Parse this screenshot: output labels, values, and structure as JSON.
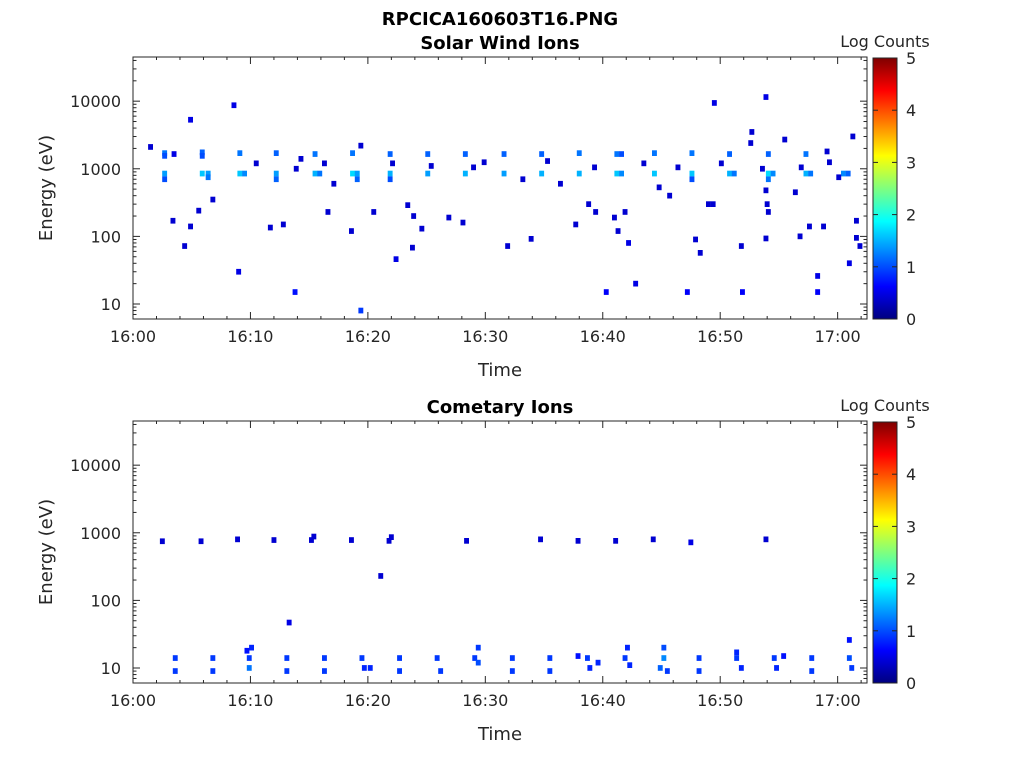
{
  "figure": {
    "title": "RPCICA160603T16.PNG"
  },
  "colors": {
    "axis": "#262626",
    "colormap": [
      "#00007f",
      "#0000ff",
      "#007fff",
      "#00ffff",
      "#7fff7f",
      "#ffff00",
      "#ff7f00",
      "#ff0000",
      "#7f0000"
    ]
  },
  "chart_data": [
    {
      "type": "heatmap",
      "title": "Solar Wind Ions",
      "xlabel": "Time",
      "ylabel": "Energy (eV)",
      "x_unit": "minutes after 16:00",
      "xlim": [
        0,
        62.5
      ],
      "ylim": [
        6,
        45000
      ],
      "yscale": "log",
      "xticks": [
        0,
        10,
        20,
        30,
        40,
        50,
        60
      ],
      "xtick_labels": [
        "16:00",
        "16:10",
        "16:20",
        "16:30",
        "16:40",
        "16:50",
        "17:00"
      ],
      "yticks": [
        10,
        100,
        1000,
        10000
      ],
      "ytick_labels": [
        "10",
        "100",
        "1000",
        "10000"
      ],
      "colorbar": {
        "label": "Log Counts",
        "range": [
          0,
          5
        ],
        "ticks": [
          "0",
          "1",
          "2",
          "3",
          "4",
          "5"
        ]
      },
      "cells": [
        [
          2.7,
          1700,
          1.2
        ],
        [
          2.7,
          1550,
          1.0
        ],
        [
          2.7,
          850,
          1.4
        ],
        [
          2.7,
          700,
          1.0
        ],
        [
          3.5,
          1650,
          0.5
        ],
        [
          5.9,
          1750,
          1.1
        ],
        [
          5.9,
          1550,
          1.0
        ],
        [
          5.9,
          850,
          1.6
        ],
        [
          6.4,
          850,
          1.4
        ],
        [
          6.4,
          750,
          1.2
        ],
        [
          9.1,
          1700,
          1.2
        ],
        [
          9.1,
          850,
          1.6
        ],
        [
          9.5,
          850,
          1.3
        ],
        [
          12.2,
          1700,
          1.1
        ],
        [
          12.2,
          850,
          1.4
        ],
        [
          12.2,
          700,
          1.1
        ],
        [
          15.5,
          1650,
          1.2
        ],
        [
          15.5,
          850,
          1.5
        ],
        [
          15.9,
          850,
          1.2
        ],
        [
          18.7,
          1700,
          1.2
        ],
        [
          18.7,
          850,
          1.7
        ],
        [
          19.1,
          850,
          1.4
        ],
        [
          19.1,
          700,
          1.1
        ],
        [
          21.9,
          1650,
          1.1
        ],
        [
          21.9,
          850,
          1.5
        ],
        [
          21.9,
          700,
          1.0
        ],
        [
          25.1,
          1650,
          1.1
        ],
        [
          25.1,
          850,
          1.4
        ],
        [
          28.3,
          1650,
          1.1
        ],
        [
          28.3,
          850,
          1.5
        ],
        [
          31.6,
          1650,
          1.1
        ],
        [
          31.6,
          850,
          1.4
        ],
        [
          34.8,
          1650,
          1.1
        ],
        [
          34.8,
          850,
          1.5
        ],
        [
          38.0,
          1700,
          1.2
        ],
        [
          38.0,
          850,
          1.5
        ],
        [
          41.2,
          1650,
          1.2
        ],
        [
          41.2,
          850,
          1.6
        ],
        [
          41.6,
          850,
          1.3
        ],
        [
          41.6,
          1650,
          1.0
        ],
        [
          44.4,
          1700,
          1.2
        ],
        [
          44.4,
          850,
          1.6
        ],
        [
          47.6,
          1700,
          1.2
        ],
        [
          47.6,
          850,
          1.6
        ],
        [
          47.6,
          700,
          1.0
        ],
        [
          50.8,
          1650,
          1.1
        ],
        [
          50.8,
          850,
          1.5
        ],
        [
          51.2,
          850,
          1.2
        ],
        [
          54.1,
          1650,
          1.1
        ],
        [
          54.1,
          850,
          1.7
        ],
        [
          54.1,
          700,
          1.2
        ],
        [
          54.5,
          850,
          1.3
        ],
        [
          57.3,
          1650,
          1.2
        ],
        [
          57.3,
          850,
          1.5
        ],
        [
          57.7,
          850,
          1.2
        ],
        [
          60.5,
          850,
          1.3
        ],
        [
          60.9,
          850,
          1.1
        ],
        [
          4.9,
          5300,
          0.5
        ],
        [
          8.6,
          8700,
          0.5
        ],
        [
          49.5,
          9400,
          0.5
        ],
        [
          53.9,
          11500,
          0.5
        ],
        [
          1.5,
          2100,
          0.4
        ],
        [
          19.4,
          2200,
          0.4
        ],
        [
          52.7,
          3500,
          0.4
        ],
        [
          52.6,
          2400,
          0.4
        ],
        [
          59.1,
          1800,
          0.4
        ],
        [
          61.3,
          3000,
          0.4
        ],
        [
          55.5,
          2700,
          0.4
        ],
        [
          3.4,
          170,
          0.4
        ],
        [
          4.4,
          72,
          0.4
        ],
        [
          4.9,
          140,
          0.4
        ],
        [
          5.6,
          240,
          0.4
        ],
        [
          6.8,
          350,
          0.4
        ],
        [
          11.7,
          135,
          0.4
        ],
        [
          12.8,
          150,
          0.4
        ],
        [
          16.6,
          230,
          0.4
        ],
        [
          18.6,
          120,
          0.4
        ],
        [
          20.5,
          230,
          0.4
        ],
        [
          22.4,
          46,
          0.5
        ],
        [
          23.4,
          290,
          0.4
        ],
        [
          23.9,
          200,
          0.4
        ],
        [
          24.6,
          130,
          0.4
        ],
        [
          23.8,
          68,
          0.4
        ],
        [
          26.9,
          190,
          0.4
        ],
        [
          28.1,
          160,
          0.4
        ],
        [
          31.9,
          72,
          0.4
        ],
        [
          33.9,
          92,
          0.4
        ],
        [
          37.7,
          150,
          0.4
        ],
        [
          38.8,
          300,
          0.4
        ],
        [
          39.4,
          230,
          0.4
        ],
        [
          41.0,
          190,
          0.4
        ],
        [
          41.9,
          230,
          0.4
        ],
        [
          42.2,
          80,
          0.5
        ],
        [
          41.3,
          120,
          0.4
        ],
        [
          44.8,
          530,
          0.4
        ],
        [
          45.7,
          400,
          0.4
        ],
        [
          47.9,
          90,
          0.4
        ],
        [
          48.3,
          57,
          0.4
        ],
        [
          49.0,
          300,
          0.4
        ],
        [
          49.4,
          300,
          0.4
        ],
        [
          51.8,
          72,
          0.4
        ],
        [
          53.9,
          93,
          0.4
        ],
        [
          53.9,
          480,
          0.4
        ],
        [
          54.0,
          300,
          0.4
        ],
        [
          54.1,
          230,
          0.4
        ],
        [
          56.4,
          450,
          0.4
        ],
        [
          56.8,
          100,
          0.4
        ],
        [
          57.6,
          140,
          0.4
        ],
        [
          58.8,
          140,
          0.4
        ],
        [
          61.6,
          170,
          0.4
        ],
        [
          61.6,
          95,
          0.4
        ],
        [
          61.9,
          72,
          0.4
        ],
        [
          61.0,
          40,
          0.5
        ],
        [
          9.0,
          30,
          0.5
        ],
        [
          13.8,
          15,
          0.7
        ],
        [
          19.4,
          8,
          0.9
        ],
        [
          40.3,
          15,
          0.6
        ],
        [
          42.8,
          20,
          0.5
        ],
        [
          47.2,
          15,
          0.6
        ],
        [
          51.9,
          15,
          0.6
        ],
        [
          58.3,
          15,
          0.6
        ],
        [
          58.3,
          26,
          0.5
        ],
        [
          14.3,
          1400,
          0.4
        ],
        [
          16.3,
          1200,
          0.4
        ],
        [
          25.4,
          1100,
          0.4
        ],
        [
          29.9,
          1250,
          0.4
        ],
        [
          33.2,
          700,
          0.4
        ],
        [
          35.3,
          1300,
          0.4
        ],
        [
          39.3,
          1050,
          0.4
        ],
        [
          43.5,
          1200,
          0.4
        ],
        [
          46.4,
          1050,
          0.4
        ],
        [
          50.1,
          1200,
          0.4
        ],
        [
          53.6,
          1000,
          0.4
        ],
        [
          56.9,
          1050,
          0.4
        ],
        [
          59.3,
          1250,
          0.4
        ],
        [
          60.1,
          750,
          0.4
        ],
        [
          10.5,
          1200,
          0.4
        ],
        [
          13.9,
          1000,
          0.4
        ],
        [
          17.1,
          600,
          0.4
        ],
        [
          22.1,
          1200,
          0.4
        ],
        [
          29.0,
          1050,
          0.4
        ],
        [
          36.4,
          600,
          0.4
        ]
      ]
    },
    {
      "type": "heatmap",
      "title": "Cometary Ions",
      "xlabel": "Time",
      "ylabel": "Energy (eV)",
      "x_unit": "minutes after 16:00",
      "xlim": [
        0,
        62.5
      ],
      "ylim": [
        6,
        45000
      ],
      "yscale": "log",
      "xticks": [
        0,
        10,
        20,
        30,
        40,
        50,
        60
      ],
      "xtick_labels": [
        "16:00",
        "16:10",
        "16:20",
        "16:30",
        "16:40",
        "16:50",
        "17:00"
      ],
      "yticks": [
        10,
        100,
        1000,
        10000
      ],
      "ytick_labels": [
        "10",
        "100",
        "1000",
        "10000"
      ],
      "colorbar": {
        "label": "Log Counts",
        "range": [
          0,
          5
        ],
        "ticks": [
          "0",
          "1",
          "2",
          "3",
          "4",
          "5"
        ]
      },
      "cells": [
        [
          2.5,
          750,
          0.4
        ],
        [
          5.8,
          750,
          0.4
        ],
        [
          8.9,
          800,
          0.4
        ],
        [
          12.0,
          780,
          0.4
        ],
        [
          15.2,
          780,
          0.4
        ],
        [
          15.4,
          880,
          0.4
        ],
        [
          18.6,
          780,
          0.4
        ],
        [
          21.8,
          760,
          0.4
        ],
        [
          22.0,
          860,
          0.4
        ],
        [
          28.4,
          760,
          0.4
        ],
        [
          34.7,
          800,
          0.4
        ],
        [
          37.9,
          760,
          0.4
        ],
        [
          41.1,
          760,
          0.4
        ],
        [
          44.3,
          800,
          0.4
        ],
        [
          47.5,
          720,
          0.5
        ],
        [
          53.9,
          800,
          0.4
        ],
        [
          21.1,
          230,
          0.4
        ],
        [
          13.3,
          47,
          0.5
        ],
        [
          3.6,
          14,
          0.9
        ],
        [
          3.6,
          9,
          0.9
        ],
        [
          6.8,
          14,
          0.9
        ],
        [
          6.8,
          9,
          0.9
        ],
        [
          9.9,
          14,
          0.9
        ],
        [
          9.9,
          10,
          1.2
        ],
        [
          10.1,
          20,
          0.8
        ],
        [
          9.7,
          18,
          0.7
        ],
        [
          13.1,
          14,
          0.9
        ],
        [
          13.1,
          9,
          0.9
        ],
        [
          16.3,
          14,
          0.9
        ],
        [
          16.3,
          9,
          0.9
        ],
        [
          19.5,
          14,
          0.9
        ],
        [
          19.7,
          10,
          0.8
        ],
        [
          20.2,
          10,
          0.8
        ],
        [
          22.7,
          14,
          0.9
        ],
        [
          22.7,
          9,
          0.9
        ],
        [
          25.9,
          14,
          0.9
        ],
        [
          26.2,
          9,
          0.9
        ],
        [
          29.1,
          14,
          0.9
        ],
        [
          29.4,
          12,
          1.0
        ],
        [
          29.4,
          20,
          0.9
        ],
        [
          32.3,
          14,
          0.9
        ],
        [
          32.3,
          9,
          0.9
        ],
        [
          35.5,
          14,
          0.9
        ],
        [
          35.5,
          9,
          0.9
        ],
        [
          38.7,
          14,
          0.9
        ],
        [
          38.9,
          10,
          0.8
        ],
        [
          37.9,
          15,
          0.7
        ],
        [
          39.6,
          12,
          0.8
        ],
        [
          41.9,
          14,
          0.9
        ],
        [
          42.1,
          20,
          0.8
        ],
        [
          42.3,
          11,
          0.8
        ],
        [
          44.9,
          10,
          1.1
        ],
        [
          45.2,
          14,
          1.3
        ],
        [
          45.2,
          20,
          1.0
        ],
        [
          45.5,
          9,
          0.9
        ],
        [
          48.2,
          14,
          0.9
        ],
        [
          48.2,
          9,
          0.9
        ],
        [
          51.4,
          14,
          0.9
        ],
        [
          51.8,
          10,
          0.8
        ],
        [
          51.4,
          17,
          0.8
        ],
        [
          54.6,
          14,
          0.9
        ],
        [
          54.8,
          10,
          0.8
        ],
        [
          55.4,
          15,
          0.7
        ],
        [
          57.8,
          14,
          0.9
        ],
        [
          57.8,
          9,
          0.9
        ],
        [
          61.0,
          14,
          1.0
        ],
        [
          61.0,
          26,
          0.7
        ],
        [
          61.2,
          10,
          0.9
        ]
      ]
    }
  ]
}
